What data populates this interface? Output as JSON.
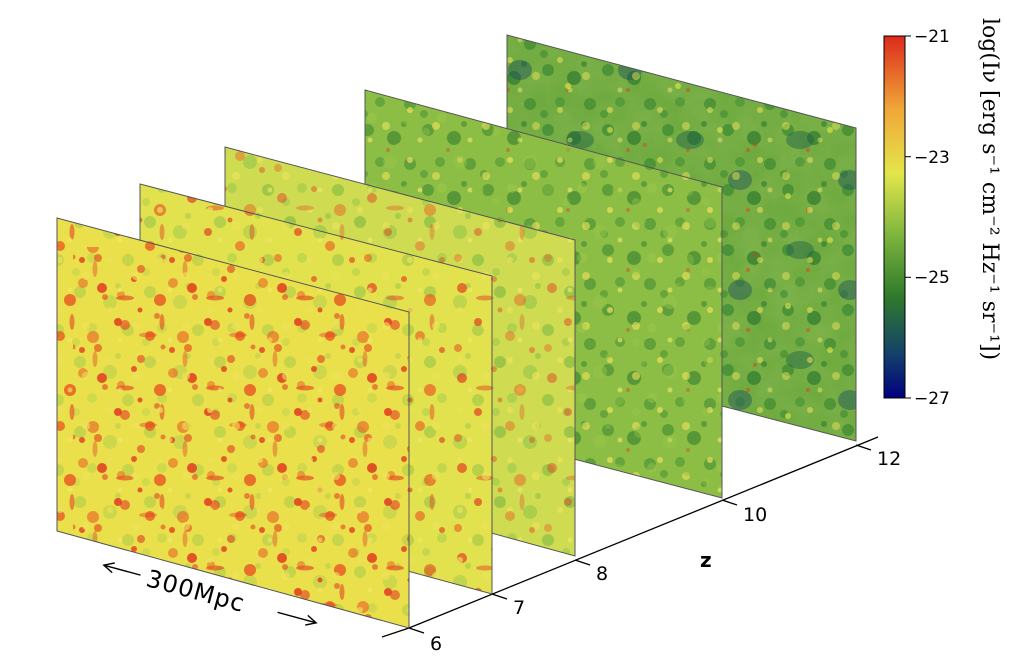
{
  "diagram": {
    "axis": {
      "name": "z",
      "ticks": [
        "6",
        "7",
        "8",
        "10",
        "12"
      ]
    },
    "scale_bar_label": "300Mpc",
    "colorbar": {
      "label": "log(Iν [erg s⁻¹ cm⁻² Hz⁻¹ sr⁻¹])",
      "ticks": [
        "−21",
        "−23",
        "−25",
        "−27"
      ],
      "range": [
        -27,
        -21
      ],
      "colormap": [
        "#00007f",
        "#1f5f2a",
        "#3f8f2f",
        "#8fbf3f",
        "#e8e84a",
        "#f0a030",
        "#e0301e"
      ]
    },
    "slices": [
      {
        "z": "12",
        "mean_level": -24.9,
        "texture": "mottled"
      },
      {
        "z": "10",
        "mean_level": -24.3,
        "texture": "mottled"
      },
      {
        "z": "8",
        "mean_level": -23.6,
        "texture": "filamentary"
      },
      {
        "z": "7",
        "mean_level": -23.1,
        "texture": "filamentary"
      },
      {
        "z": "6",
        "mean_level": -22.6,
        "texture": "filamentary"
      }
    ]
  }
}
